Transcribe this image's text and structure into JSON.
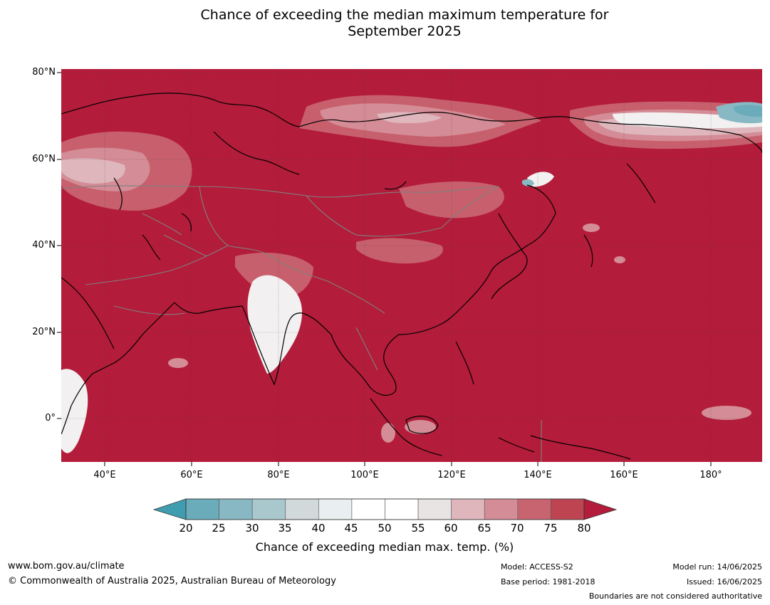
{
  "title": {
    "line1": "Chance of exceeding the median maximum temperature for",
    "line2": "September 2025"
  },
  "map": {
    "latitude_ticks": [
      "80°N",
      "60°N",
      "40°N",
      "20°N",
      "0°"
    ],
    "longitude_ticks": [
      "40°E",
      "60°E",
      "80°E",
      "100°E",
      "120°E",
      "140°E",
      "160°E",
      "180°"
    ],
    "extent": {
      "lon_min": 30,
      "lon_max": 192,
      "lat_min": -10,
      "lat_max": 81
    },
    "dominant_color": "#b31c3a",
    "coastline_color": "#000000",
    "border_color": "#808080"
  },
  "colorbar": {
    "ticks": [
      "20",
      "25",
      "30",
      "35",
      "40",
      "45",
      "50",
      "55",
      "60",
      "65",
      "70",
      "75",
      "80"
    ],
    "colors": [
      "#3f9daf",
      "#6aacba",
      "#88b8c3",
      "#a9c8cd",
      "#d1d9da",
      "#e9eef0",
      "#ffffff",
      "#ffffff",
      "#e8e4e4",
      "#deb6bc",
      "#d48c96",
      "#c8646f",
      "#bf4452",
      "#b31c3a"
    ],
    "label": "Chance of exceeding median max. temp. (%)"
  },
  "footer": {
    "website": "www.bom.gov.au/climate",
    "copyright": "© Commonwealth of Australia 2025, Australian Bureau of Meteorology",
    "model": "Model: ACCESS-S2",
    "base_period": "Base period: 1981-2018",
    "model_run": "Model run: 14/06/2025",
    "issued": "Issued: 16/06/2025",
    "disclaimer": "Boundaries are not considered authoritative"
  }
}
